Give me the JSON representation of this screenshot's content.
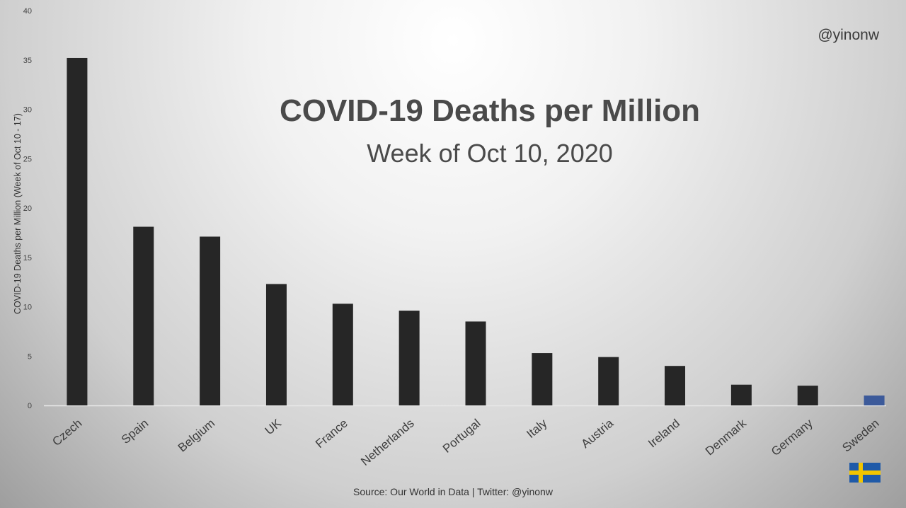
{
  "watermark": "@yinonw",
  "source": "Source: Our World in Data | Twitter: @yinonw",
  "flag_icon": "sweden-flag-icon",
  "colors": {
    "bar": "#262626",
    "highlight": "#3c5a9a",
    "flag_blue": "#1f5aa8",
    "flag_yellow": "#f2c500"
  },
  "chart_data": {
    "type": "bar",
    "title": "COVID-19 Deaths per Million",
    "subtitle": "Week of Oct 10, 2020",
    "xlabel": "",
    "ylabel": "COVID-19 Deaths per Million (Week of Oct 10 - 17)",
    "ylim": [
      0,
      40
    ],
    "yticks": [
      "0",
      "5",
      "10",
      "15",
      "20",
      "25",
      "30",
      "35",
      "40"
    ],
    "grid": false,
    "highlight": "Sweden",
    "categories": [
      "Czech",
      "Spain",
      "Belgium",
      "UK",
      "France",
      "Netherlands",
      "Portugal",
      "Italy",
      "Austria",
      "Ireland",
      "Denmark",
      "Germany",
      "Sweden"
    ],
    "values": [
      35.2,
      18.1,
      17.1,
      12.3,
      10.3,
      9.6,
      8.5,
      5.3,
      4.9,
      4.0,
      2.1,
      2.0,
      1.0
    ]
  }
}
